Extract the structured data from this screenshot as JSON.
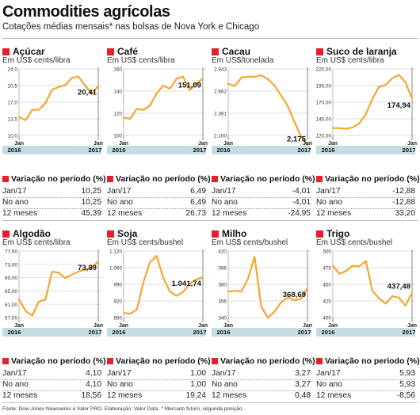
{
  "header": {
    "title": "Commodities agrícolas",
    "subtitle": "Cotações médias mensais* nas bolsas de Nova York e Chicago"
  },
  "footer": {
    "source": "Fonte: Dow Jones Newswires e Valor PRO. Elaboração: Valor Data. * Mercado futuro, segunda posição."
  },
  "labels": {
    "variation_title": "Variação no período (%)",
    "row_labels": [
      "Jan/17",
      "No ano",
      "12 meses"
    ]
  },
  "colors": {
    "line": "#f5a630",
    "band": "#c4dde3",
    "accent": "#e5202a"
  },
  "chart_data": [
    {
      "type": "line",
      "title": "Açúcar",
      "ylabel": "Em US$ cents/libra",
      "ylim": [
        10,
        24
      ],
      "yticks": [
        "24,0",
        "20,5",
        "17,0",
        "13,5",
        "10,0"
      ],
      "xticks": [
        "Jan",
        "Jan"
      ],
      "years": [
        "2016",
        "2017"
      ],
      "values": [
        13.9,
        13.2,
        15.4,
        15.4,
        16.8,
        19.6,
        20.2,
        20.6,
        22.1,
        22.4,
        20.5,
        18.8,
        20.41
      ],
      "last_label": "20,41",
      "variation": [
        "10,25",
        "10,25",
        "45,39"
      ]
    },
    {
      "type": "line",
      "title": "Café",
      "ylabel": "Em US$ cents/libra",
      "ylim": [
        100,
        160
      ],
      "yticks": [
        "160",
        "140",
        "120",
        "100"
      ],
      "xticks": [
        "Jan",
        "Jan"
      ],
      "years": [
        "2016",
        "2017"
      ],
      "values": [
        116,
        115,
        124,
        123,
        127,
        138,
        145,
        142,
        151,
        153,
        141,
        147,
        151.09
      ],
      "last_label": "151,09",
      "variation": [
        "6,49",
        "6,49",
        "26,73"
      ]
    },
    {
      "type": "line",
      "title": "Cacau",
      "ylabel": "Em US$/tonelada",
      "ylim": [
        2300,
        3150
      ],
      "yticks": [
        "2.943",
        "2.662",
        "2.381",
        "2.100"
      ],
      "xticks": [
        "Jan",
        "Jan"
      ],
      "years": [
        "2016",
        "2017"
      ],
      "values": [
        2960,
        2930,
        3040,
        3050,
        3050,
        3070,
        3020,
        2940,
        2810,
        2680,
        2480,
        2290,
        2175
      ],
      "last_label": "2,175",
      "variation": [
        "-4,01",
        "-4,01",
        "-24,95"
      ]
    },
    {
      "type": "line",
      "title": "Suco de laranja",
      "ylabel": "Em US$ cents/libra",
      "ylim": [
        120,
        220
      ],
      "yticks": [
        "220,00",
        "195,00",
        "170,00",
        "145,00",
        "120,00"
      ],
      "xticks": [
        "Jan",
        "Jan"
      ],
      "years": [
        "2016",
        "2017"
      ],
      "values": [
        131,
        131,
        130,
        132,
        138,
        152,
        175,
        193,
        196,
        206,
        211,
        200,
        174.94
      ],
      "last_label": "174,94",
      "variation": [
        "-12,88",
        "-12,88",
        "33,20"
      ]
    },
    {
      "type": "line",
      "title": "Algodão",
      "ylabel": "Em US$ cents/libra",
      "ylim": [
        57,
        77
      ],
      "yticks": [
        "77,00",
        "73,00",
        "69,00",
        "65,00",
        "61,00",
        "57,00"
      ],
      "xticks": [
        "Jan",
        "Jan"
      ],
      "years": [
        "2016",
        "2017"
      ],
      "values": [
        62.5,
        59.0,
        57.6,
        61.8,
        62.4,
        70.8,
        70.5,
        68.9,
        69.9,
        70.8,
        71.4,
        71.9,
        73.89
      ],
      "last_label": "73,89",
      "variation": [
        "4,10",
        "4,10",
        "18,56"
      ]
    },
    {
      "type": "line",
      "title": "Soja",
      "ylabel": "Em US$ cents/bushel",
      "ylim": [
        860,
        1160
      ],
      "yticks": [
        "1.120",
        "1.060",
        "990",
        "920",
        "850"
      ],
      "xticks": [
        "Jan",
        "Jan"
      ],
      "years": [
        "2016",
        "2017"
      ],
      "values": [
        880,
        877,
        896,
        1020,
        1110,
        1138,
        1040,
        978,
        958,
        975,
        1013,
        1032,
        1041.74
      ],
      "last_label": "1.041,74",
      "variation": [
        "1,00",
        "1,00",
        "19,24"
      ]
    },
    {
      "type": "line",
      "title": "Milho",
      "ylabel": "Em US$ cents/bushel",
      "ylim": [
        328,
        420
      ],
      "yticks": [
        "420",
        "398",
        "380",
        "356",
        "340"
      ],
      "xticks": [
        "Jan",
        "Jan"
      ],
      "years": [
        "2016",
        "2017"
      ],
      "values": [
        364,
        365,
        364,
        382,
        412,
        343,
        328,
        336,
        349,
        356,
        352,
        354,
        368.69
      ],
      "last_label": "368,69",
      "variation": [
        "3,27",
        "3,27",
        "0,48"
      ]
    },
    {
      "type": "line",
      "title": "Trigo",
      "ylabel": "Em US$ cents/bushel",
      "ylim": [
        400,
        500
      ],
      "yticks": [
        "500",
        "475",
        "450",
        "425",
        "400"
      ],
      "xticks": [
        "Jan",
        "Jan"
      ],
      "years": [
        "2016",
        "2017"
      ],
      "values": [
        478,
        466,
        470,
        478,
        477,
        485,
        440,
        429,
        421,
        432,
        430,
        418,
        437.48
      ],
      "last_label": "437,48",
      "variation": [
        "5,93",
        "5,93",
        "-8,56"
      ]
    }
  ]
}
